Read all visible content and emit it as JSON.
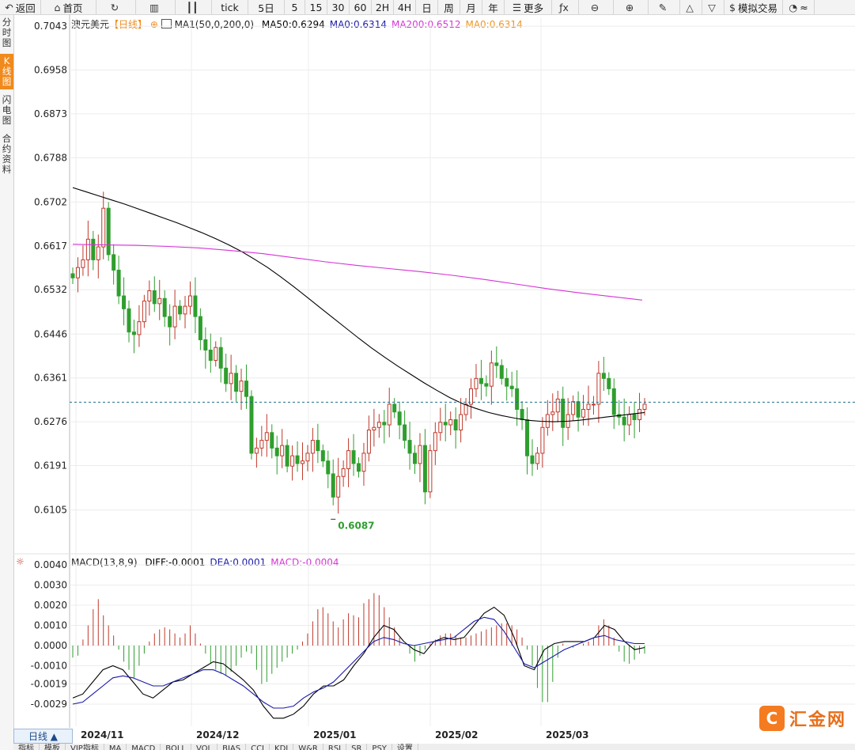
{
  "toolbar": {
    "items": [
      {
        "icon": "back-icon",
        "label": "返回"
      },
      {
        "icon": "home-icon",
        "label": "首页"
      },
      {
        "icon": "refresh-icon",
        "label": ""
      },
      {
        "icon": "bar-chart-icon",
        "label": ""
      },
      {
        "icon": "candlestick-icon",
        "label": ""
      },
      {
        "icon": "",
        "label": "tick"
      },
      {
        "icon": "",
        "label": "5日"
      },
      {
        "icon": "",
        "label": "5"
      },
      {
        "icon": "",
        "label": "15"
      },
      {
        "icon": "",
        "label": "30"
      },
      {
        "icon": "",
        "label": "60"
      },
      {
        "icon": "",
        "label": "2H"
      },
      {
        "icon": "",
        "label": "4H"
      },
      {
        "icon": "",
        "label": "日"
      },
      {
        "icon": "",
        "label": "周"
      },
      {
        "icon": "",
        "label": "月"
      },
      {
        "icon": "",
        "label": "年"
      },
      {
        "icon": "menu-icon",
        "label": "更多"
      },
      {
        "icon": "fx-icon",
        "label": ""
      },
      {
        "icon": "zoom-out-icon",
        "label": ""
      },
      {
        "icon": "zoom-in-icon",
        "label": ""
      },
      {
        "icon": "pen-icon",
        "label": ""
      },
      {
        "icon": "triangle-up-icon",
        "label": ""
      },
      {
        "icon": "triangle-down-icon",
        "label": ""
      },
      {
        "icon": "dollar-icon",
        "label": "模拟交易"
      },
      {
        "icon": "more-icon",
        "label": "≈"
      }
    ]
  },
  "sidebar": {
    "tabs": [
      {
        "label": "分时图",
        "active": false
      },
      {
        "label": "K线图",
        "active": true
      },
      {
        "label": "闪电图",
        "active": false
      },
      {
        "label": "合约资料",
        "active": false
      }
    ]
  },
  "legend": {
    "symbol": "澳元美元",
    "period": "【日线】",
    "add": "⊕",
    "ma_label": "MA1(50,0,200,0)",
    "items": [
      {
        "text": "MA50:0.6294",
        "color": "#000000"
      },
      {
        "text": "MA0:0.6314",
        "color": "#1a1aa8"
      },
      {
        "text": "MA200:0.6512",
        "color": "#d633d6"
      },
      {
        "text": "MA0:0.6314",
        "color": "#f0961e"
      }
    ]
  },
  "macd_legend": {
    "name": "MACD(13,8,9)",
    "items": [
      {
        "text": "DIFF:-0.0001",
        "color": "#000000"
      },
      {
        "text": "DEA:0.0001",
        "color": "#1a1aa8"
      },
      {
        "text": "MACD:-0.0004",
        "color": "#d633d6"
      }
    ]
  },
  "bottom": {
    "period_button": "日线 ▲",
    "tabs": [
      "指标",
      "模板",
      "VIP指标",
      "MA",
      "MACD",
      "BOLL",
      "VOL",
      "BIAS",
      "CCI",
      "KDJ",
      "W&R",
      "RSI",
      "SR",
      "PSY",
      "设置"
    ]
  },
  "logo": {
    "glyph": "C",
    "text": "汇金网",
    "sub": "www.gold678.com"
  },
  "chart_data": [
    {
      "type": "candlestick",
      "title": "澳元美元 日线",
      "y_ticks": [
        0.7043,
        0.6958,
        0.6873,
        0.6788,
        0.6702,
        0.6617,
        0.6532,
        0.6446,
        0.6361,
        0.6276,
        0.6191,
        0.6105
      ],
      "ylim": [
        0.602,
        0.706
      ],
      "x_ticks": [
        "2024/11",
        "2024/12",
        "2025/01",
        "2025/02",
        "2025/03"
      ],
      "last_price": 0.6314,
      "min_label": "0.6087",
      "colors": {
        "up": "#c0392b",
        "down": "#2e9e2e",
        "ma50": "#000000",
        "ma200": "#d633d6",
        "price_line": "#1f6f8b"
      },
      "closes": [
        0.6555,
        0.6575,
        0.659,
        0.663,
        0.659,
        0.6615,
        0.669,
        0.66,
        0.657,
        0.652,
        0.6495,
        0.645,
        0.6445,
        0.647,
        0.651,
        0.653,
        0.6505,
        0.6515,
        0.648,
        0.646,
        0.65,
        0.6485,
        0.65,
        0.652,
        0.648,
        0.6435,
        0.6415,
        0.6395,
        0.642,
        0.638,
        0.635,
        0.637,
        0.6335,
        0.6355,
        0.6325,
        0.6215,
        0.6225,
        0.624,
        0.6255,
        0.6225,
        0.621,
        0.623,
        0.619,
        0.621,
        0.6195,
        0.62,
        0.6215,
        0.624,
        0.622,
        0.62,
        0.6175,
        0.613,
        0.617,
        0.6185,
        0.622,
        0.6195,
        0.618,
        0.6215,
        0.626,
        0.6265,
        0.6275,
        0.627,
        0.631,
        0.6295,
        0.627,
        0.624,
        0.6215,
        0.6195,
        0.623,
        0.614,
        0.622,
        0.6255,
        0.6275,
        0.627,
        0.628,
        0.626,
        0.629,
        0.631,
        0.634,
        0.636,
        0.635,
        0.6345,
        0.639,
        0.6385,
        0.636,
        0.6345,
        0.634,
        0.63,
        0.628,
        0.621,
        0.6195,
        0.6215,
        0.6265,
        0.629,
        0.6295,
        0.632,
        0.6265,
        0.629,
        0.6315,
        0.6285,
        0.63,
        0.631,
        0.631,
        0.637,
        0.636,
        0.634,
        0.629,
        0.6285,
        0.627,
        0.629,
        0.628,
        0.63,
        0.631
      ],
      "ma50": [
        0.673,
        0.6722,
        0.6714,
        0.6706,
        0.6698,
        0.6689,
        0.668,
        0.6671,
        0.6662,
        0.6652,
        0.6642,
        0.6631,
        0.6619,
        0.6606,
        0.6591,
        0.6575,
        0.6557,
        0.6538,
        0.6518,
        0.6498,
        0.6478,
        0.6458,
        0.6438,
        0.6419,
        0.6401,
        0.6384,
        0.6368,
        0.6352,
        0.6337,
        0.6323,
        0.6311,
        0.6302,
        0.6294,
        0.6288,
        0.6283,
        0.6279,
        0.6277,
        0.6276,
        0.6277,
        0.6279,
        0.6282,
        0.6285,
        0.6288,
        0.6291,
        0.6294
      ],
      "ma200": [
        0.662,
        0.6619,
        0.6618,
        0.6616,
        0.6613,
        0.6608,
        0.6602,
        0.6594,
        0.6586,
        0.6579,
        0.6573,
        0.6567,
        0.656,
        0.6552,
        0.6543,
        0.6534,
        0.6526,
        0.6519,
        0.6512
      ]
    },
    {
      "type": "macd",
      "y_ticks": [
        0.004,
        0.003,
        0.002,
        0.001,
        0.0,
        -0.001,
        -0.0019,
        -0.0029
      ],
      "ylim": [
        -0.004,
        0.004
      ],
      "histogram": [
        -0.0006,
        -0.0005,
        0.0003,
        0.001,
        0.0018,
        0.0023,
        0.0015,
        0.001,
        0.0005,
        -0.0002,
        -0.0008,
        -0.0012,
        -0.0016,
        -0.001,
        -0.0004,
        0.0002,
        0.0006,
        0.0008,
        0.0009,
        0.0008,
        0.0006,
        0.0004,
        0.0006,
        0.001,
        0.0006,
        0.0001,
        -0.0004,
        -0.0009,
        -0.0012,
        -0.0014,
        -0.0015,
        -0.0013,
        -0.001,
        -0.0006,
        -0.0003,
        -0.0004,
        -0.0012,
        -0.0019,
        -0.0018,
        -0.0014,
        -0.0011,
        -0.0008,
        -0.0006,
        -0.0004,
        -0.0002,
        0.0002,
        0.0006,
        0.0012,
        0.0018,
        0.0019,
        0.0016,
        0.0012,
        0.0009,
        0.0013,
        0.0016,
        0.0015,
        0.0014,
        0.0021,
        0.0023,
        0.0026,
        0.0025,
        0.0019,
        0.0014,
        0.0009,
        0.0004,
        0.0,
        -0.0004,
        -0.0008,
        -0.0005,
        -0.0002,
        0.0001,
        0.0003,
        0.0005,
        0.0006,
        0.0006,
        0.0005,
        0.0004,
        0.0004,
        0.0005,
        0.0006,
        0.0007,
        0.0008,
        0.0009,
        0.001,
        0.0011,
        0.0011,
        0.001,
        0.0008,
        0.0004,
        -0.0002,
        -0.001,
        -0.0021,
        -0.0028,
        -0.0028,
        -0.0018,
        -0.0006,
        0.0001,
        0.0,
        -0.0001,
        0.0,
        0.0001,
        0.0002,
        0.0004,
        0.001,
        0.0013,
        0.001,
        0.0004,
        -0.0003,
        -0.0008,
        -0.0009,
        -0.0007,
        -0.0004,
        -0.0004
      ],
      "diff": [
        -0.0026,
        -0.0024,
        -0.0018,
        -0.0012,
        -0.001,
        -0.0012,
        -0.0018,
        -0.0024,
        -0.0026,
        -0.0022,
        -0.0018,
        -0.0017,
        -0.0014,
        -0.0011,
        -0.0008,
        -0.0009,
        -0.0013,
        -0.0017,
        -0.0022,
        -0.003,
        -0.0036,
        -0.0036,
        -0.0034,
        -0.003,
        -0.0024,
        -0.002,
        -0.002,
        -0.0017,
        -0.001,
        -0.0004,
        0.0004,
        0.001,
        0.0008,
        0.0002,
        -0.0002,
        -0.0004,
        0.0002,
        0.0004,
        0.0003,
        0.0004,
        0.001,
        0.0016,
        0.0019,
        0.0015,
        0.0004,
        -0.001,
        -0.0012,
        -0.0002,
        0.0001,
        0.0002,
        0.0002,
        0.0002,
        0.0004,
        0.001,
        0.0008,
        0.0002,
        -0.0002,
        -0.0001
      ],
      "dea": [
        -0.0029,
        -0.0028,
        -0.0024,
        -0.002,
        -0.0016,
        -0.0015,
        -0.0016,
        -0.0018,
        -0.002,
        -0.002,
        -0.0018,
        -0.0016,
        -0.0014,
        -0.0012,
        -0.0012,
        -0.0014,
        -0.0017,
        -0.002,
        -0.0024,
        -0.0028,
        -0.0031,
        -0.0031,
        -0.003,
        -0.0026,
        -0.0023,
        -0.0021,
        -0.0018,
        -0.0013,
        -0.0008,
        -0.0003,
        0.0002,
        0.0004,
        0.0003,
        0.0001,
        0.0,
        0.0001,
        0.0002,
        0.0003,
        0.0004,
        0.0008,
        0.0012,
        0.0014,
        0.0013,
        0.0007,
        -0.0001,
        -0.0009,
        -0.0011,
        -0.0008,
        -0.0005,
        -0.0002,
        0.0,
        0.0002,
        0.0004,
        0.0005,
        0.0003,
        0.0002,
        0.0001,
        0.0001
      ]
    }
  ]
}
